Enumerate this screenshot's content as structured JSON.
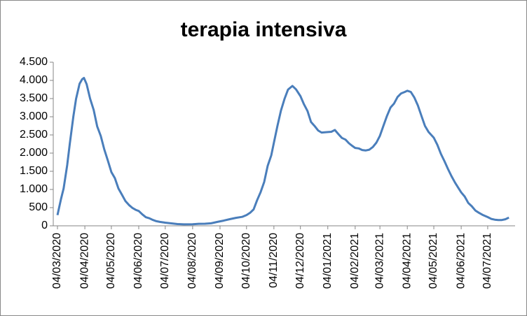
{
  "chart_data": {
    "type": "line",
    "title": "terapia intensiva",
    "x": [
      "04/03/2020",
      "08/03/2020",
      "11/03/2020",
      "15/03/2020",
      "18/03/2020",
      "22/03/2020",
      "25/03/2020",
      "29/03/2020",
      "01/04/2020",
      "03/04/2020",
      "06/04/2020",
      "10/04/2020",
      "14/04/2020",
      "18/04/2020",
      "22/04/2020",
      "26/04/2020",
      "30/04/2020",
      "04/05/2020",
      "08/05/2020",
      "12/05/2020",
      "16/05/2020",
      "20/05/2020",
      "24/05/2020",
      "28/05/2020",
      "01/06/2020",
      "04/06/2020",
      "08/06/2020",
      "12/06/2020",
      "16/06/2020",
      "20/06/2020",
      "24/06/2020",
      "28/06/2020",
      "04/07/2020",
      "11/07/2020",
      "18/07/2020",
      "25/07/2020",
      "04/08/2020",
      "11/08/2020",
      "18/08/2020",
      "25/08/2020",
      "01/09/2020",
      "08/09/2020",
      "15/09/2020",
      "22/09/2020",
      "29/09/2020",
      "04/10/2020",
      "08/10/2020",
      "12/10/2020",
      "16/10/2020",
      "20/10/2020",
      "24/10/2020",
      "28/10/2020",
      "01/11/2020",
      "04/11/2020",
      "08/11/2020",
      "12/11/2020",
      "16/11/2020",
      "20/11/2020",
      "25/11/2020",
      "29/11/2020",
      "04/12/2020",
      "08/12/2020",
      "12/12/2020",
      "16/12/2020",
      "20/12/2020",
      "24/12/2020",
      "28/12/2020",
      "04/01/2021",
      "08/01/2021",
      "12/01/2021",
      "16/01/2021",
      "20/01/2021",
      "24/01/2021",
      "28/01/2021",
      "01/02/2021",
      "04/02/2021",
      "08/02/2021",
      "12/02/2021",
      "16/02/2021",
      "20/02/2021",
      "24/02/2021",
      "28/02/2021",
      "04/03/2021",
      "08/03/2021",
      "12/03/2021",
      "16/03/2021",
      "20/03/2021",
      "24/03/2021",
      "28/03/2021",
      "01/04/2021",
      "04/04/2021",
      "08/04/2021",
      "12/04/2021",
      "16/04/2021",
      "20/04/2021",
      "24/04/2021",
      "28/04/2021",
      "04/05/2021",
      "08/05/2021",
      "12/05/2021",
      "16/05/2021",
      "20/05/2021",
      "24/05/2021",
      "28/05/2021",
      "01/06/2021",
      "04/06/2021",
      "08/06/2021",
      "12/06/2021",
      "16/06/2021",
      "20/06/2021",
      "24/06/2021",
      "28/06/2021",
      "04/07/2021",
      "08/07/2021",
      "12/07/2021",
      "16/07/2021",
      "20/07/2021",
      "24/07/2021",
      "28/07/2021"
    ],
    "values": [
      295,
      733,
      1028,
      1672,
      2257,
      3009,
      3489,
      3906,
      4035,
      4068,
      3898,
      3497,
      3186,
      2733,
      2471,
      2102,
      1795,
      1479,
      1311,
      1027,
      855,
      676,
      572,
      489,
      435,
      408,
      316,
      236,
      207,
      161,
      127,
      107,
      87,
      68,
      49,
      41,
      42,
      55,
      58,
      69,
      107,
      143,
      182,
      220,
      247,
      297,
      358,
      452,
      705,
      926,
      1208,
      1651,
      1939,
      2292,
      2749,
      3170,
      3492,
      3748,
      3848,
      3753,
      3567,
      3345,
      3158,
      2855,
      2748,
      2624,
      2565,
      2579,
      2587,
      2636,
      2522,
      2418,
      2372,
      2270,
      2194,
      2143,
      2128,
      2084,
      2074,
      2094,
      2168,
      2288,
      2475,
      2756,
      3024,
      3256,
      3364,
      3545,
      3642,
      3681,
      3716,
      3683,
      3526,
      3310,
      3024,
      2748,
      2583,
      2423,
      2227,
      1981,
      1779,
      1566,
      1368,
      1189,
      1034,
      920,
      806,
      629,
      539,
      421,
      360,
      304,
      240,
      191,
      170,
      158,
      160,
      180,
      226
    ],
    "color": "#4a7ebb",
    "xlim": [
      "04/03/2020",
      "04/08/2021"
    ],
    "xticks": [
      "04/03/2020",
      "04/04/2020",
      "04/05/2020",
      "04/06/2020",
      "04/07/2020",
      "04/08/2020",
      "04/09/2020",
      "04/10/2020",
      "04/11/2020",
      "04/12/2020",
      "04/01/2021",
      "04/02/2021",
      "04/03/2021",
      "04/04/2021",
      "04/05/2021",
      "04/06/2021",
      "04/07/2021"
    ],
    "ylim": [
      0,
      4500
    ],
    "yticks": [
      0,
      500,
      {
        "value": 1000,
        "label": "1.000"
      },
      {
        "value": 1500,
        "label": "1.500"
      },
      {
        "value": 2000,
        "label": "2.000"
      },
      {
        "value": 2500,
        "label": "2.500"
      },
      {
        "value": 3000,
        "label": "3.000"
      },
      {
        "value": 3500,
        "label": "3.500"
      },
      {
        "value": 4000,
        "label": "4.000"
      },
      {
        "value": 4500,
        "label": "4.500"
      }
    ],
    "grid": false
  }
}
